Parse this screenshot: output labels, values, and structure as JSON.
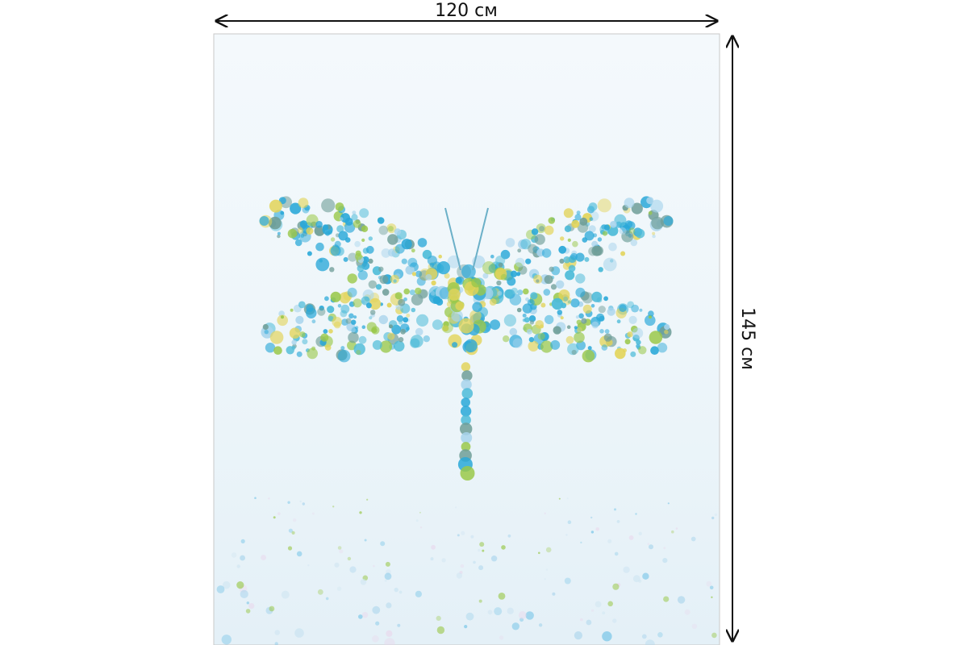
{
  "dimensions": {
    "width_label": "120 см",
    "height_label": "145 см"
  }
}
